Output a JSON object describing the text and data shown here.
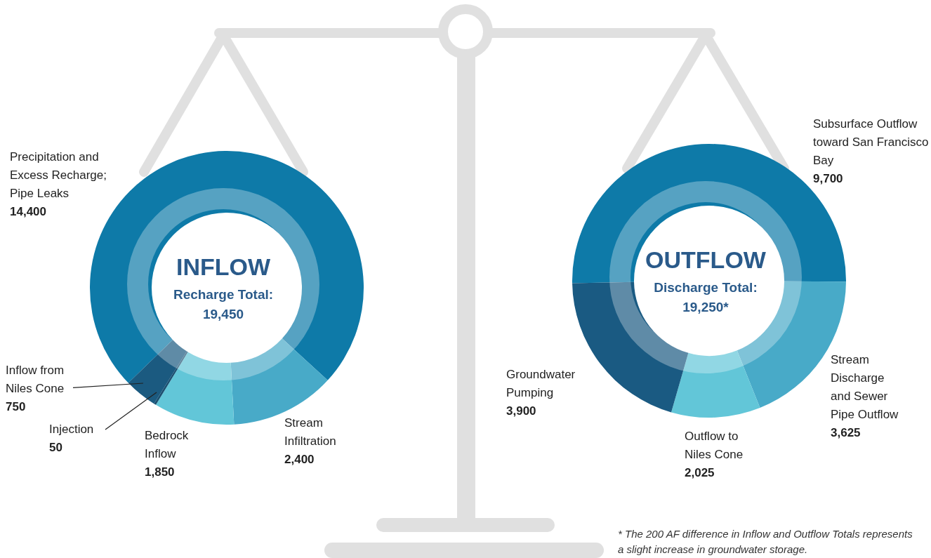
{
  "chart_data": [
    {
      "type": "donut",
      "title": "INFLOW",
      "subtitle": "Recharge Total: 19,450",
      "categories": [
        "Precipitation and Excess Recharge; Pipe Leaks",
        "Stream Infiltration",
        "Bedrock Inflow",
        "Injection",
        "Inflow from Niles Cone"
      ],
      "values": [
        14400,
        2400,
        1850,
        50,
        750
      ],
      "value_labels": [
        "14,400",
        "2,400",
        "1,850",
        "50",
        "750"
      ],
      "colors": [
        "#0e7aa8",
        "#48aac8",
        "#62c6d8",
        "#1b4f70",
        "#1b5a80"
      ]
    },
    {
      "type": "donut",
      "title": "OUTFLOW",
      "subtitle": "Discharge Total: 19,250*",
      "categories": [
        "Subsurface Outflow toward San Francisco Bay",
        "Stream Discharge and Sewer Pipe Outflow",
        "Outflow to Niles Cone",
        "Groundwater Pumping"
      ],
      "values": [
        9700,
        3625,
        2025,
        3900
      ],
      "value_labels": [
        "9,700",
        "3,625",
        "2,025",
        "3,900"
      ],
      "colors": [
        "#0e7aa8",
        "#48aac8",
        "#62c6d8",
        "#1a5a82"
      ],
      "annotations": [
        "* The 200 AF difference in Inflow and Outflow Totals represents a slight increase in groundwater storage."
      ]
    }
  ]
}
